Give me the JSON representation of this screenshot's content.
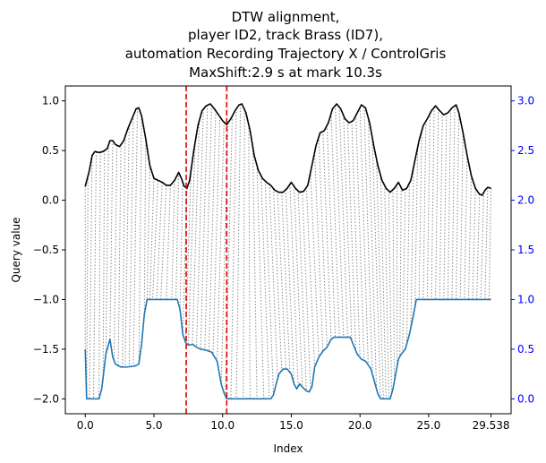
{
  "chart_data": {
    "type": "line",
    "title_lines": [
      "DTW alignment,",
      "player ID2, track Brass (ID7),",
      "automation Recording Trajectory X / ControlGris",
      "MaxShift:2.9 s at mark 10.3s"
    ],
    "xlabel": "Index",
    "ylabel": "Query value",
    "xlim": [
      -1.45,
      31.0
    ],
    "ylim": [
      -2.15,
      1.15
    ],
    "y2lim": [
      -0.15,
      3.15
    ],
    "xticks": [
      0.0,
      5.0,
      10.0,
      15.0,
      20.0,
      25.0,
      29.538
    ],
    "xtick_labels": [
      "0.0",
      "5.0",
      "10.0",
      "15.0",
      "20.0",
      "25.0",
      "29.538"
    ],
    "yticks": [
      -2.0,
      -1.5,
      -1.0,
      -0.5,
      0.0,
      0.5,
      1.0
    ],
    "ytick_labels": [
      "−2.0",
      "−1.5",
      "−1.0",
      "−0.5",
      "0.0",
      "0.5",
      "1.0"
    ],
    "y2ticks": [
      0.0,
      0.5,
      1.0,
      1.5,
      2.0,
      2.5,
      3.0
    ],
    "y2tick_labels": [
      "0.0",
      "0.5",
      "1.0",
      "1.5",
      "2.0",
      "2.5",
      "3.0"
    ],
    "vlines": [
      7.35,
      10.3
    ],
    "query_series": {
      "color": "#000000",
      "points": [
        [
          0.0,
          0.14
        ],
        [
          0.3,
          0.3
        ],
        [
          0.5,
          0.45
        ],
        [
          0.7,
          0.49
        ],
        [
          1.0,
          0.48
        ],
        [
          1.3,
          0.49
        ],
        [
          1.6,
          0.52
        ],
        [
          1.8,
          0.6
        ],
        [
          2.0,
          0.6
        ],
        [
          2.2,
          0.56
        ],
        [
          2.5,
          0.54
        ],
        [
          2.8,
          0.6
        ],
        [
          3.1,
          0.72
        ],
        [
          3.4,
          0.82
        ],
        [
          3.7,
          0.92
        ],
        [
          3.9,
          0.93
        ],
        [
          4.1,
          0.85
        ],
        [
          4.4,
          0.62
        ],
        [
          4.7,
          0.35
        ],
        [
          5.0,
          0.22
        ],
        [
          5.3,
          0.2
        ],
        [
          5.6,
          0.18
        ],
        [
          5.9,
          0.15
        ],
        [
          6.2,
          0.15
        ],
        [
          6.5,
          0.2
        ],
        [
          6.8,
          0.28
        ],
        [
          7.0,
          0.22
        ],
        [
          7.2,
          0.14
        ],
        [
          7.4,
          0.12
        ],
        [
          7.6,
          0.2
        ],
        [
          7.9,
          0.5
        ],
        [
          8.2,
          0.75
        ],
        [
          8.5,
          0.9
        ],
        [
          8.8,
          0.95
        ],
        [
          9.1,
          0.97
        ],
        [
          9.4,
          0.92
        ],
        [
          9.7,
          0.86
        ],
        [
          10.0,
          0.8
        ],
        [
          10.3,
          0.76
        ],
        [
          10.6,
          0.82
        ],
        [
          10.9,
          0.9
        ],
        [
          11.2,
          0.96
        ],
        [
          11.4,
          0.97
        ],
        [
          11.7,
          0.88
        ],
        [
          12.0,
          0.7
        ],
        [
          12.3,
          0.45
        ],
        [
          12.6,
          0.3
        ],
        [
          12.9,
          0.22
        ],
        [
          13.2,
          0.18
        ],
        [
          13.5,
          0.15
        ],
        [
          13.8,
          0.1
        ],
        [
          14.1,
          0.08
        ],
        [
          14.4,
          0.08
        ],
        [
          14.7,
          0.12
        ],
        [
          15.0,
          0.18
        ],
        [
          15.3,
          0.12
        ],
        [
          15.6,
          0.08
        ],
        [
          15.9,
          0.09
        ],
        [
          16.2,
          0.15
        ],
        [
          16.5,
          0.35
        ],
        [
          16.8,
          0.55
        ],
        [
          17.1,
          0.68
        ],
        [
          17.4,
          0.7
        ],
        [
          17.7,
          0.78
        ],
        [
          18.0,
          0.92
        ],
        [
          18.3,
          0.97
        ],
        [
          18.6,
          0.92
        ],
        [
          18.9,
          0.82
        ],
        [
          19.2,
          0.78
        ],
        [
          19.5,
          0.8
        ],
        [
          19.8,
          0.88
        ],
        [
          20.1,
          0.96
        ],
        [
          20.4,
          0.93
        ],
        [
          20.7,
          0.78
        ],
        [
          21.0,
          0.55
        ],
        [
          21.3,
          0.35
        ],
        [
          21.6,
          0.2
        ],
        [
          21.9,
          0.12
        ],
        [
          22.2,
          0.08
        ],
        [
          22.5,
          0.12
        ],
        [
          22.8,
          0.18
        ],
        [
          23.1,
          0.1
        ],
        [
          23.4,
          0.12
        ],
        [
          23.7,
          0.2
        ],
        [
          24.0,
          0.4
        ],
        [
          24.3,
          0.6
        ],
        [
          24.6,
          0.75
        ],
        [
          24.9,
          0.82
        ],
        [
          25.2,
          0.9
        ],
        [
          25.5,
          0.95
        ],
        [
          25.8,
          0.9
        ],
        [
          26.1,
          0.86
        ],
        [
          26.4,
          0.88
        ],
        [
          26.7,
          0.93
        ],
        [
          27.0,
          0.96
        ],
        [
          27.2,
          0.88
        ],
        [
          27.5,
          0.68
        ],
        [
          27.8,
          0.45
        ],
        [
          28.1,
          0.25
        ],
        [
          28.4,
          0.12
        ],
        [
          28.7,
          0.06
        ],
        [
          28.9,
          0.05
        ],
        [
          29.1,
          0.1
        ],
        [
          29.3,
          0.13
        ],
        [
          29.538,
          0.12
        ]
      ]
    },
    "reference_series": {
      "color": "#1f77b4",
      "axis": "right",
      "points": [
        [
          0.0,
          0.5
        ],
        [
          0.1,
          0.0
        ],
        [
          1.0,
          0.0
        ],
        [
          1.2,
          0.1
        ],
        [
          1.5,
          0.45
        ],
        [
          1.8,
          0.6
        ],
        [
          2.0,
          0.42
        ],
        [
          2.2,
          0.35
        ],
        [
          2.6,
          0.32
        ],
        [
          3.0,
          0.32
        ],
        [
          3.6,
          0.33
        ],
        [
          3.9,
          0.35
        ],
        [
          4.1,
          0.55
        ],
        [
          4.3,
          0.85
        ],
        [
          4.5,
          1.0
        ],
        [
          6.7,
          1.0
        ],
        [
          6.9,
          0.9
        ],
        [
          7.1,
          0.65
        ],
        [
          7.3,
          0.57
        ],
        [
          7.5,
          0.54
        ],
        [
          7.8,
          0.55
        ],
        [
          8.1,
          0.52
        ],
        [
          8.4,
          0.5
        ],
        [
          8.8,
          0.49
        ],
        [
          9.2,
          0.47
        ],
        [
          9.6,
          0.38
        ],
        [
          9.9,
          0.15
        ],
        [
          10.1,
          0.06
        ],
        [
          10.3,
          0.0
        ],
        [
          13.5,
          0.0
        ],
        [
          13.7,
          0.04
        ],
        [
          13.9,
          0.15
        ],
        [
          14.1,
          0.25
        ],
        [
          14.4,
          0.3
        ],
        [
          14.7,
          0.3
        ],
        [
          15.0,
          0.25
        ],
        [
          15.2,
          0.15
        ],
        [
          15.4,
          0.1
        ],
        [
          15.6,
          0.15
        ],
        [
          15.8,
          0.12
        ],
        [
          16.1,
          0.08
        ],
        [
          16.3,
          0.07
        ],
        [
          16.5,
          0.12
        ],
        [
          16.7,
          0.32
        ],
        [
          17.0,
          0.42
        ],
        [
          17.3,
          0.48
        ],
        [
          17.6,
          0.52
        ],
        [
          17.9,
          0.6
        ],
        [
          18.1,
          0.62
        ],
        [
          18.5,
          0.62
        ],
        [
          19.3,
          0.62
        ],
        [
          19.5,
          0.55
        ],
        [
          19.8,
          0.45
        ],
        [
          20.1,
          0.4
        ],
        [
          20.4,
          0.38
        ],
        [
          20.8,
          0.3
        ],
        [
          21.1,
          0.15
        ],
        [
          21.3,
          0.05
        ],
        [
          21.5,
          0.0
        ],
        [
          22.2,
          0.0
        ],
        [
          22.4,
          0.1
        ],
        [
          22.6,
          0.25
        ],
        [
          22.8,
          0.4
        ],
        [
          23.0,
          0.45
        ],
        [
          23.3,
          0.5
        ],
        [
          23.6,
          0.65
        ],
        [
          23.9,
          0.85
        ],
        [
          24.1,
          1.0
        ],
        [
          29.538,
          1.0
        ]
      ]
    },
    "alignment_pairs": [
      [
        0.0,
        0.0
      ],
      [
        0.2,
        0.1
      ],
      [
        0.5,
        0.3
      ],
      [
        0.8,
        0.6
      ],
      [
        1.1,
        1.0
      ],
      [
        1.4,
        1.3
      ],
      [
        1.7,
        1.5
      ],
      [
        2.0,
        1.8
      ],
      [
        2.3,
        2.1
      ],
      [
        2.6,
        2.4
      ],
      [
        2.9,
        2.7
      ],
      [
        3.2,
        2.9
      ],
      [
        3.5,
        3.2
      ],
      [
        3.8,
        3.5
      ],
      [
        4.1,
        3.9
      ],
      [
        4.4,
        4.3
      ],
      [
        4.7,
        4.5
      ],
      [
        5.0,
        4.7
      ],
      [
        5.3,
        4.9
      ],
      [
        5.6,
        5.2
      ],
      [
        5.9,
        5.5
      ],
      [
        6.2,
        5.9
      ],
      [
        6.5,
        6.3
      ],
      [
        6.8,
        6.6
      ],
      [
        7.1,
        6.9
      ],
      [
        7.4,
        7.1
      ],
      [
        7.7,
        7.3
      ],
      [
        8.0,
        7.5
      ],
      [
        8.3,
        7.8
      ],
      [
        8.6,
        8.1
      ],
      [
        8.9,
        8.4
      ],
      [
        9.2,
        8.7
      ],
      [
        9.5,
        9.0
      ],
      [
        9.8,
        9.3
      ],
      [
        10.1,
        9.6
      ],
      [
        10.4,
        9.9
      ],
      [
        10.7,
        10.2
      ],
      [
        11.0,
        10.6
      ],
      [
        11.3,
        11.0
      ],
      [
        11.6,
        11.5
      ],
      [
        11.9,
        12.0
      ],
      [
        12.2,
        12.5
      ],
      [
        12.5,
        13.0
      ],
      [
        12.8,
        13.4
      ],
      [
        13.1,
        13.7
      ],
      [
        13.4,
        14.0
      ],
      [
        13.7,
        14.3
      ],
      [
        14.0,
        14.6
      ],
      [
        14.3,
        14.9
      ],
      [
        14.6,
        15.2
      ],
      [
        14.9,
        15.5
      ],
      [
        15.2,
        15.8
      ],
      [
        15.5,
        16.1
      ],
      [
        15.8,
        16.4
      ],
      [
        16.1,
        16.7
      ],
      [
        16.4,
        17.0
      ],
      [
        16.7,
        17.3
      ],
      [
        17.0,
        17.6
      ],
      [
        17.3,
        17.9
      ],
      [
        17.6,
        18.2
      ],
      [
        17.9,
        18.5
      ],
      [
        18.2,
        18.8
      ],
      [
        18.5,
        19.1
      ],
      [
        18.8,
        19.4
      ],
      [
        19.1,
        19.7
      ],
      [
        19.4,
        20.0
      ],
      [
        19.7,
        20.3
      ],
      [
        20.0,
        20.6
      ],
      [
        20.3,
        20.9
      ],
      [
        20.6,
        21.2
      ],
      [
        20.9,
        21.5
      ],
      [
        21.2,
        21.7
      ],
      [
        21.5,
        21.9
      ],
      [
        21.8,
        22.1
      ],
      [
        22.1,
        22.3
      ],
      [
        22.4,
        22.5
      ],
      [
        22.7,
        22.7
      ],
      [
        23.0,
        22.9
      ],
      [
        23.3,
        23.1
      ],
      [
        23.6,
        23.4
      ],
      [
        23.9,
        23.7
      ],
      [
        24.2,
        24.0
      ],
      [
        24.5,
        24.3
      ],
      [
        24.8,
        24.6
      ],
      [
        25.1,
        24.9
      ],
      [
        25.4,
        25.2
      ],
      [
        25.7,
        25.5
      ],
      [
        26.0,
        25.8
      ],
      [
        26.3,
        26.1
      ],
      [
        26.6,
        26.4
      ],
      [
        26.9,
        26.7
      ],
      [
        27.2,
        27.0
      ],
      [
        27.5,
        27.3
      ],
      [
        27.8,
        27.6
      ],
      [
        28.1,
        27.9
      ],
      [
        28.4,
        28.2
      ],
      [
        28.7,
        28.5
      ],
      [
        29.0,
        28.8
      ],
      [
        29.3,
        29.1
      ],
      [
        29.538,
        29.4
      ]
    ]
  }
}
